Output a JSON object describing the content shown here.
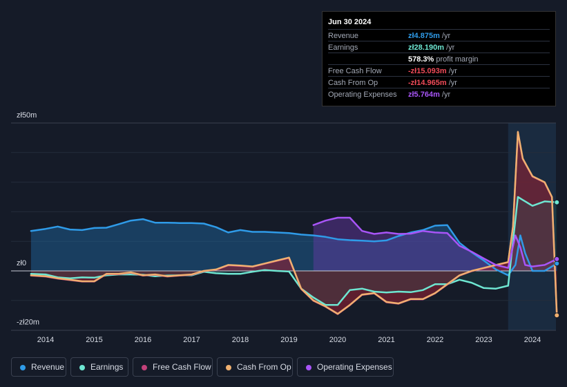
{
  "tooltip": {
    "date": "Jun 30 2024",
    "rows": [
      {
        "label": "Revenue",
        "value": "zł4.875m",
        "unit": "/yr",
        "color": "#2f9be8"
      },
      {
        "label": "Earnings",
        "value": "zł28.190m",
        "unit": "/yr",
        "color": "#6ee7d2"
      },
      {
        "label": "",
        "value": "578.3%",
        "unit": "profit margin",
        "color": "#ffffff"
      },
      {
        "label": "Free Cash Flow",
        "value": "-zł15.093m",
        "unit": "/yr",
        "color": "#f04b59"
      },
      {
        "label": "Cash From Op",
        "value": "-zł14.965m",
        "unit": "/yr",
        "color": "#f04b59"
      },
      {
        "label": "Operating Expenses",
        "value": "zł5.764m",
        "unit": "/yr",
        "color": "#a855f7"
      }
    ]
  },
  "legend": [
    {
      "label": "Revenue",
      "color": "#2f9be8"
    },
    {
      "label": "Earnings",
      "color": "#6ee7d2"
    },
    {
      "label": "Free Cash Flow",
      "color": "#c2417a"
    },
    {
      "label": "Cash From Op",
      "color": "#f0b070"
    },
    {
      "label": "Operating Expenses",
      "color": "#a855f7"
    }
  ],
  "chart_data": {
    "type": "line",
    "title": "",
    "xlabel": "",
    "ylabel": "",
    "y_tick_labels": [
      "zł50m",
      "zł0",
      "-zł20m"
    ],
    "y_ticks": [
      50,
      0,
      -20
    ],
    "ylim": [
      -20,
      50
    ],
    "xlim": [
      2013.7,
      2024.5
    ],
    "x_ticks": [
      2014,
      2015,
      2016,
      2017,
      2018,
      2019,
      2020,
      2021,
      2022,
      2023,
      2024
    ],
    "x_tick_labels": [
      "2014",
      "2015",
      "2016",
      "2017",
      "2018",
      "2019",
      "2020",
      "2021",
      "2022",
      "2023",
      "2024"
    ],
    "highlight_start": 2023.5,
    "series": [
      {
        "name": "Revenue",
        "color": "#2f9be8",
        "x": [
          2013.7,
          2014.0,
          2014.25,
          2014.5,
          2014.75,
          2015.0,
          2015.25,
          2015.5,
          2015.75,
          2016.0,
          2016.25,
          2016.5,
          2016.75,
          2017.0,
          2017.25,
          2017.5,
          2017.75,
          2018.0,
          2018.25,
          2018.5,
          2018.75,
          2019.0,
          2019.25,
          2019.5,
          2019.75,
          2020.0,
          2020.25,
          2020.5,
          2020.75,
          2021.0,
          2021.25,
          2021.5,
          2021.75,
          2022.0,
          2022.25,
          2022.5,
          2022.75,
          2023.0,
          2023.25,
          2023.5,
          2023.65,
          2023.75,
          2023.85,
          2024.0,
          2024.25,
          2024.5
        ],
        "values": [
          13.5,
          14.2,
          15.0,
          14.0,
          13.8,
          14.5,
          14.6,
          15.8,
          17.0,
          17.5,
          16.3,
          16.3,
          16.2,
          16.2,
          16.0,
          14.8,
          13.0,
          13.8,
          13.2,
          13.2,
          13.0,
          12.8,
          12.3,
          12.0,
          11.5,
          10.7,
          10.4,
          10.2,
          10.0,
          10.3,
          11.8,
          13.0,
          13.8,
          15.3,
          15.5,
          9.5,
          6.3,
          3.5,
          0.5,
          -1.5,
          2.0,
          12.0,
          6.0,
          0.0,
          0.0,
          2.5
        ]
      },
      {
        "name": "Earnings",
        "color": "#6ee7d2",
        "x": [
          2013.7,
          2014.0,
          2014.25,
          2014.5,
          2014.75,
          2015.0,
          2015.25,
          2015.5,
          2015.75,
          2016.0,
          2016.25,
          2016.5,
          2016.75,
          2017.0,
          2017.25,
          2017.5,
          2017.75,
          2018.0,
          2018.25,
          2018.5,
          2018.75,
          2019.0,
          2019.25,
          2019.5,
          2019.75,
          2020.0,
          2020.25,
          2020.5,
          2020.75,
          2021.0,
          2021.25,
          2021.5,
          2021.75,
          2022.0,
          2022.25,
          2022.5,
          2022.75,
          2023.0,
          2023.25,
          2023.5,
          2023.6,
          2023.7,
          2023.8,
          2024.0,
          2024.25,
          2024.5
        ],
        "values": [
          -1.0,
          -1.2,
          -2.2,
          -2.5,
          -2.2,
          -2.3,
          -1.5,
          -1.2,
          -1.2,
          -1.3,
          -1.8,
          -1.6,
          -1.5,
          -1.5,
          -0.3,
          -0.8,
          -1.0,
          -1.0,
          -0.3,
          0.3,
          0.0,
          -0.2,
          -6.0,
          -9.0,
          -11.5,
          -11.5,
          -6.5,
          -6.0,
          -7.0,
          -7.3,
          -7.0,
          -7.2,
          -6.5,
          -4.5,
          -4.5,
          -3.0,
          -4.0,
          -5.8,
          -6.0,
          -5.0,
          10.0,
          25.0,
          24.0,
          22.0,
          23.5,
          23.2
        ]
      },
      {
        "name": "Operating Expenses",
        "color": "#a855f7",
        "x": [
          2019.5,
          2019.75,
          2020.0,
          2020.25,
          2020.5,
          2020.75,
          2021.0,
          2021.25,
          2021.5,
          2021.75,
          2022.0,
          2022.25,
          2022.5,
          2022.75,
          2023.0,
          2023.25,
          2023.5,
          2023.65,
          2023.75,
          2023.85,
          2024.0,
          2024.25,
          2024.5
        ],
        "values": [
          15.5,
          17.0,
          18.0,
          18.0,
          13.5,
          12.5,
          13.0,
          12.5,
          12.6,
          13.5,
          13.0,
          12.8,
          8.5,
          6.5,
          4.2,
          2.0,
          1.0,
          12.0,
          8.0,
          2.0,
          1.5,
          2.0,
          4.0
        ]
      },
      {
        "name": "Cash From Op",
        "color": "#f0b070",
        "x": [
          2013.7,
          2014.0,
          2014.25,
          2014.5,
          2014.75,
          2015.0,
          2015.25,
          2015.5,
          2015.75,
          2016.0,
          2016.25,
          2016.5,
          2016.75,
          2017.0,
          2017.25,
          2017.5,
          2017.75,
          2018.0,
          2018.25,
          2018.5,
          2018.75,
          2019.0,
          2019.25,
          2019.5,
          2019.75,
          2020.0,
          2020.25,
          2020.5,
          2020.75,
          2021.0,
          2021.25,
          2021.5,
          2021.75,
          2022.0,
          2022.25,
          2022.5,
          2022.75,
          2023.0,
          2023.25,
          2023.5,
          2023.6,
          2023.7,
          2023.8,
          2024.0,
          2024.25,
          2024.4,
          2024.5
        ],
        "values": [
          -1.5,
          -1.8,
          -2.5,
          -3.0,
          -3.5,
          -3.5,
          -1.0,
          -1.0,
          -0.5,
          -1.5,
          -1.2,
          -1.8,
          -1.5,
          -1.2,
          0.0,
          0.5,
          2.0,
          1.8,
          1.5,
          2.5,
          3.5,
          4.5,
          -6.0,
          -10.0,
          -12.0,
          -14.5,
          -11.5,
          -8.0,
          -7.5,
          -10.5,
          -11.0,
          -9.5,
          -9.5,
          -7.5,
          -4.5,
          -1.5,
          0.0,
          1.0,
          2.0,
          3.0,
          15.0,
          47.0,
          38.0,
          32.0,
          30.0,
          25.0,
          -15.0
        ]
      },
      {
        "name": "Free Cash Flow",
        "color": "#c2417a",
        "x": [
          2013.7,
          2014.0,
          2014.25,
          2014.5,
          2014.75,
          2015.0,
          2015.25,
          2015.5,
          2015.75,
          2016.0,
          2016.25,
          2016.5,
          2016.75,
          2017.0,
          2017.25,
          2017.5,
          2017.75,
          2018.0,
          2018.25,
          2018.5,
          2018.75,
          2019.0,
          2019.25,
          2019.5,
          2019.75,
          2020.0,
          2020.25,
          2020.5,
          2020.75,
          2021.0,
          2021.25,
          2021.5,
          2021.75,
          2022.0,
          2022.25,
          2022.5,
          2022.75,
          2023.0,
          2023.25,
          2023.5,
          2023.6,
          2023.7,
          2023.8,
          2024.0,
          2024.25,
          2024.4,
          2024.5
        ],
        "values": [
          -1.6,
          -1.9,
          -2.6,
          -3.1,
          -3.6,
          -3.6,
          -1.1,
          -1.1,
          -0.6,
          -1.6,
          -1.3,
          -1.9,
          -1.6,
          -1.3,
          -0.1,
          0.4,
          1.9,
          1.7,
          1.4,
          2.4,
          3.4,
          4.4,
          -6.1,
          -10.1,
          -12.1,
          -14.6,
          -11.6,
          -8.1,
          -7.6,
          -10.6,
          -11.1,
          -9.6,
          -9.6,
          -7.6,
          -4.6,
          -1.6,
          -0.1,
          0.9,
          1.9,
          2.9,
          14.9,
          46.9,
          37.9,
          31.9,
          29.9,
          24.9,
          -15.1
        ]
      }
    ]
  }
}
